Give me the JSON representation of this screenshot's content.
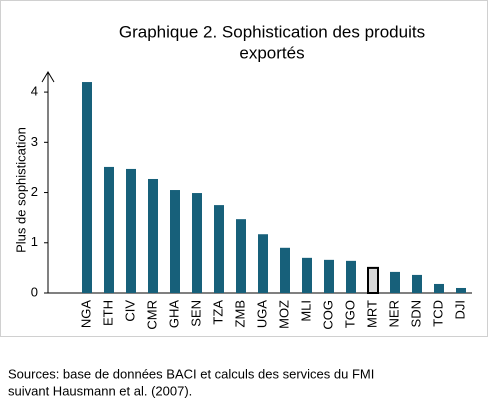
{
  "chart_data": {
    "type": "bar",
    "title": [
      "Graphique 2. Sophistication des produits",
      "exportés"
    ],
    "y_label": "Plus de sophistication",
    "categories": [
      "NGA",
      "ETH",
      "CIV",
      "CMR",
      "GHA",
      "SEN",
      "TZA",
      "ZMB",
      "UGA",
      "MOZ",
      "MLI",
      "COG",
      "TGO",
      "MRT",
      "NER",
      "SDN",
      "TCD",
      "DJI"
    ],
    "values": [
      4.2,
      2.51,
      2.47,
      2.27,
      2.05,
      1.99,
      1.75,
      1.47,
      1.17,
      0.9,
      0.7,
      0.66,
      0.64,
      0.5,
      0.42,
      0.36,
      0.18,
      0.1
    ],
    "colors": [
      "#17607a",
      "#17607a",
      "#17607a",
      "#17607a",
      "#17607a",
      "#17607a",
      "#17607a",
      "#17607a",
      "#17607a",
      "#17607a",
      "#17607a",
      "#17607a",
      "#17607a",
      "#d9d9d9",
      "#17607a",
      "#17607a",
      "#17607a",
      "#17607a"
    ],
    "ylim": [
      0,
      4.4
    ],
    "yticks": [
      0,
      1,
      2,
      3,
      4
    ],
    "grid": false,
    "source": [
      "Sources: base de données BACI et calculs des services du FMI",
      "suivant  Hausmann et al. (2007)."
    ]
  }
}
